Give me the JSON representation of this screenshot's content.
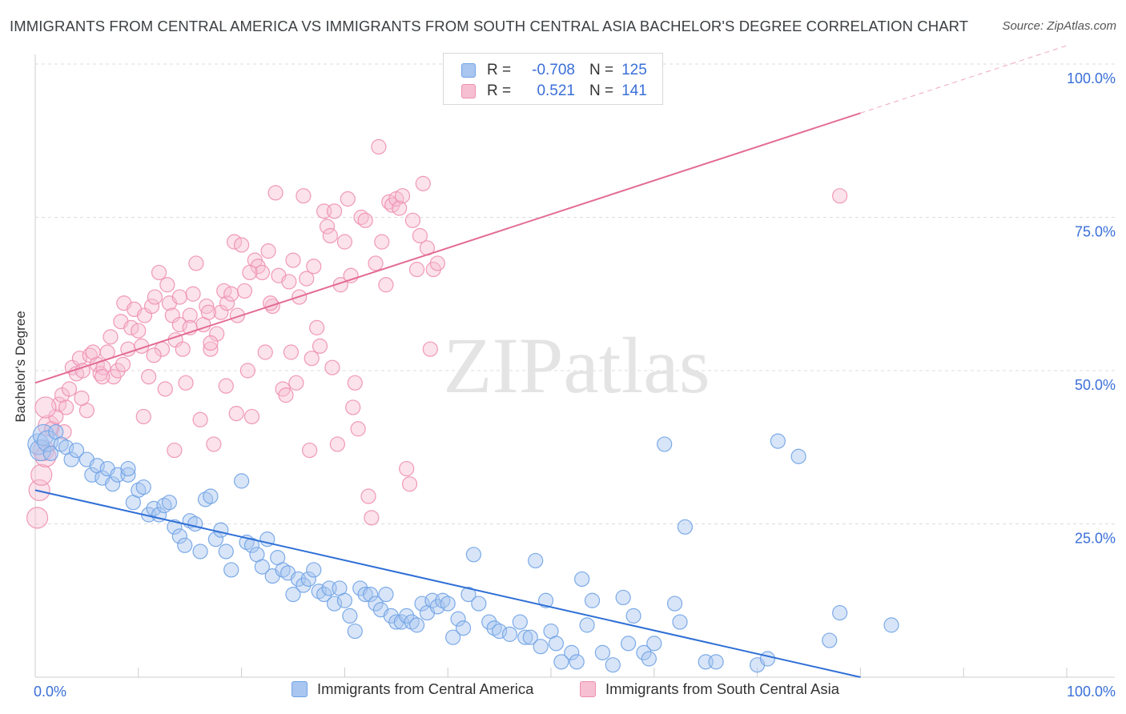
{
  "chart_data": {
    "type": "scatter",
    "title": "IMMIGRANTS FROM CENTRAL AMERICA VS IMMIGRANTS FROM SOUTH CENTRAL ASIA BACHELOR'S DEGREE CORRELATION CHART",
    "source": "Source: ZipAtlas.com",
    "watermark": "ZIPatlas",
    "xlabel": "",
    "ylabel": "Bachelor's Degree",
    "xlim": [
      0,
      100
    ],
    "ylim": [
      0,
      100
    ],
    "x_tick_labels": [
      "0.0%",
      "100.0%"
    ],
    "y_ticks": [
      25,
      50,
      75,
      100
    ],
    "y_tick_labels": [
      "25.0%",
      "50.0%",
      "75.0%",
      "100.0%"
    ],
    "grid": true,
    "legend_stats": [
      {
        "r_label": "R =",
        "r_value": "-0.708",
        "n_label": "N =",
        "n_value": "125"
      },
      {
        "r_label": "R =",
        "r_value": "0.521",
        "n_label": "N =",
        "n_value": "141"
      }
    ],
    "series": [
      {
        "name": "Immigrants from Central America",
        "color": "#6fa2e6",
        "fill": "#a9c6f0",
        "line_color": "#2f6fd6",
        "trend": {
          "x0": 0,
          "y0": 30.5,
          "x1": 80,
          "y1": 0
        },
        "points": [
          [
            0.3,
            38
          ],
          [
            0.5,
            37
          ],
          [
            0.8,
            39.5
          ],
          [
            1.2,
            38.5
          ],
          [
            1.5,
            36.5
          ],
          [
            2,
            40
          ],
          [
            2.5,
            38
          ],
          [
            3,
            37.5
          ],
          [
            3.5,
            35.5
          ],
          [
            4,
            37
          ],
          [
            5,
            35.5
          ],
          [
            5.5,
            33
          ],
          [
            6,
            34.5
          ],
          [
            6.5,
            32.5
          ],
          [
            7,
            34
          ],
          [
            7.5,
            31.5
          ],
          [
            8,
            33
          ],
          [
            9,
            33
          ],
          [
            9,
            34
          ],
          [
            9.5,
            28.5
          ],
          [
            10,
            30.5
          ],
          [
            10.5,
            31
          ],
          [
            11,
            26.5
          ],
          [
            11.5,
            27.5
          ],
          [
            12,
            26.5
          ],
          [
            12.5,
            28
          ],
          [
            13,
            28.5
          ],
          [
            13.5,
            24.5
          ],
          [
            14,
            23
          ],
          [
            14.5,
            21.5
          ],
          [
            15,
            25.5
          ],
          [
            15.5,
            25
          ],
          [
            16,
            20.5
          ],
          [
            16.5,
            29
          ],
          [
            17,
            29.5
          ],
          [
            17.5,
            22.5
          ],
          [
            18,
            24
          ],
          [
            18.5,
            20.5
          ],
          [
            19,
            17.5
          ],
          [
            20,
            32
          ],
          [
            20.5,
            22
          ],
          [
            21,
            21.5
          ],
          [
            21.5,
            20
          ],
          [
            22,
            18
          ],
          [
            22.5,
            22.5
          ],
          [
            23,
            16.5
          ],
          [
            23.5,
            19.5
          ],
          [
            24,
            17.5
          ],
          [
            24.5,
            17
          ],
          [
            25,
            13.5
          ],
          [
            25.5,
            16
          ],
          [
            26,
            15
          ],
          [
            26.5,
            16
          ],
          [
            27,
            17.5
          ],
          [
            27.5,
            14
          ],
          [
            28,
            13.5
          ],
          [
            28.5,
            14.5
          ],
          [
            29,
            12
          ],
          [
            29.5,
            14.5
          ],
          [
            30,
            12.5
          ],
          [
            30.5,
            10
          ],
          [
            31,
            7.5
          ],
          [
            31.5,
            14.5
          ],
          [
            32,
            13.5
          ],
          [
            32.5,
            13.5
          ],
          [
            33,
            12
          ],
          [
            33.5,
            11
          ],
          [
            34,
            13.5
          ],
          [
            34.5,
            10
          ],
          [
            35,
            9
          ],
          [
            35.5,
            9
          ],
          [
            36,
            10
          ],
          [
            36.5,
            9
          ],
          [
            37,
            8.5
          ],
          [
            37.5,
            12
          ],
          [
            38,
            10.5
          ],
          [
            38.5,
            12.5
          ],
          [
            39,
            11.5
          ],
          [
            39.5,
            12.5
          ],
          [
            40,
            12
          ],
          [
            40.5,
            6.5
          ],
          [
            41,
            9.5
          ],
          [
            41.5,
            8
          ],
          [
            42,
            13.5
          ],
          [
            42.5,
            20
          ],
          [
            43,
            12
          ],
          [
            44,
            9
          ],
          [
            44.5,
            8
          ],
          [
            45,
            7.5
          ],
          [
            46,
            7
          ],
          [
            47,
            9
          ],
          [
            47.5,
            6.5
          ],
          [
            48,
            6.5
          ],
          [
            48.5,
            19
          ],
          [
            49,
            5
          ],
          [
            49.5,
            12.5
          ],
          [
            50,
            7.5
          ],
          [
            50.5,
            5.5
          ],
          [
            51,
            2.5
          ],
          [
            52,
            4
          ],
          [
            52.5,
            2.5
          ],
          [
            53,
            16
          ],
          [
            53.5,
            8.5
          ],
          [
            54,
            12.5
          ],
          [
            55,
            4
          ],
          [
            56,
            2
          ],
          [
            57,
            13
          ],
          [
            57.5,
            5.5
          ],
          [
            58,
            10
          ],
          [
            59,
            4
          ],
          [
            59.5,
            3
          ],
          [
            60,
            5.5
          ],
          [
            61,
            38
          ],
          [
            62,
            12
          ],
          [
            62.5,
            9
          ],
          [
            63,
            24.5
          ],
          [
            65,
            2.5
          ],
          [
            66,
            2.5
          ],
          [
            72,
            38.5
          ],
          [
            74,
            36
          ],
          [
            77,
            6
          ],
          [
            78,
            10.5
          ],
          [
            83,
            8.5
          ],
          [
            70,
            2
          ],
          [
            71,
            3
          ]
        ]
      },
      {
        "name": "Immigrants from South Central Asia",
        "color": "#ee8fb0",
        "fill": "#f6bfd2",
        "line_color": "#e36c94",
        "trend": {
          "x0": 0,
          "y0": 48,
          "x1": 80,
          "y1": 92
        },
        "trend_dashed": {
          "x0": 80,
          "y0": 92,
          "x1": 100,
          "y1": 103
        },
        "points": [
          [
            0.2,
            26
          ],
          [
            0.4,
            30.5
          ],
          [
            0.6,
            33
          ],
          [
            0.8,
            37
          ],
          [
            1,
            36
          ],
          [
            1.3,
            41
          ],
          [
            1.6,
            40.5
          ],
          [
            2,
            42.5
          ],
          [
            2.3,
            44.5
          ],
          [
            2.6,
            46
          ],
          [
            3,
            44
          ],
          [
            3.3,
            47
          ],
          [
            3.6,
            50.5
          ],
          [
            4,
            49.5
          ],
          [
            4.3,
            52
          ],
          [
            4.6,
            50
          ],
          [
            5,
            43.5
          ],
          [
            5.3,
            52.5
          ],
          [
            5.6,
            53
          ],
          [
            6,
            51
          ],
          [
            6.3,
            49.5
          ],
          [
            6.6,
            50.5
          ],
          [
            7,
            53
          ],
          [
            7.3,
            55.5
          ],
          [
            7.6,
            49
          ],
          [
            8,
            50
          ],
          [
            8.3,
            58
          ],
          [
            8.6,
            61
          ],
          [
            9,
            53.5
          ],
          [
            9.3,
            57
          ],
          [
            9.6,
            60
          ],
          [
            10,
            56.5
          ],
          [
            10.3,
            54
          ],
          [
            10.6,
            59
          ],
          [
            11,
            49
          ],
          [
            11.3,
            60.5
          ],
          [
            11.6,
            62
          ],
          [
            12,
            66
          ],
          [
            12.3,
            53.5
          ],
          [
            12.6,
            47
          ],
          [
            13,
            61
          ],
          [
            13.3,
            59
          ],
          [
            13.6,
            55
          ],
          [
            14,
            57.5
          ],
          [
            14.3,
            53.5
          ],
          [
            14.6,
            48
          ],
          [
            15,
            59
          ],
          [
            15.3,
            62.5
          ],
          [
            15.6,
            67.5
          ],
          [
            16,
            42
          ],
          [
            16.3,
            57.5
          ],
          [
            16.6,
            60.5
          ],
          [
            17,
            53.5
          ],
          [
            17.3,
            38
          ],
          [
            17.6,
            56
          ],
          [
            18,
            59.5
          ],
          [
            18.3,
            63
          ],
          [
            18.6,
            61
          ],
          [
            19,
            62.5
          ],
          [
            19.3,
            71
          ],
          [
            19.6,
            59
          ],
          [
            20,
            70.5
          ],
          [
            20.3,
            63
          ],
          [
            20.6,
            50
          ],
          [
            21,
            42.5
          ],
          [
            21.3,
            68
          ],
          [
            21.6,
            67
          ],
          [
            22,
            66
          ],
          [
            22.3,
            53
          ],
          [
            22.6,
            69.5
          ],
          [
            23,
            60.5
          ],
          [
            23.3,
            79
          ],
          [
            23.6,
            65.5
          ],
          [
            24,
            47
          ],
          [
            24.3,
            46
          ],
          [
            24.6,
            64.5
          ],
          [
            25,
            68
          ],
          [
            25.3,
            48
          ],
          [
            25.6,
            62
          ],
          [
            26,
            78.5
          ],
          [
            26.3,
            65
          ],
          [
            26.6,
            37
          ],
          [
            27,
            67
          ],
          [
            27.3,
            57
          ],
          [
            27.6,
            54
          ],
          [
            28,
            76
          ],
          [
            28.3,
            73.5
          ],
          [
            28.6,
            72
          ],
          [
            29,
            76
          ],
          [
            29.3,
            38
          ],
          [
            29.6,
            64
          ],
          [
            30,
            71
          ],
          [
            30.3,
            78
          ],
          [
            30.6,
            65.5
          ],
          [
            31,
            48
          ],
          [
            31.3,
            40.5
          ],
          [
            31.6,
            75
          ],
          [
            32,
            74.5
          ],
          [
            32.3,
            29.5
          ],
          [
            32.6,
            26
          ],
          [
            33,
            67.5
          ],
          [
            33.3,
            86.5
          ],
          [
            33.6,
            71
          ],
          [
            34,
            64
          ],
          [
            34.3,
            77.5
          ],
          [
            34.6,
            77
          ],
          [
            35,
            78
          ],
          [
            35.3,
            76.5
          ],
          [
            35.6,
            78.5
          ],
          [
            36,
            34
          ],
          [
            36.3,
            31.5
          ],
          [
            36.6,
            74.5
          ],
          [
            37,
            66.5
          ],
          [
            37.3,
            72
          ],
          [
            37.6,
            80.5
          ],
          [
            38,
            70
          ],
          [
            38.3,
            53.5
          ],
          [
            38.6,
            66.5
          ],
          [
            39,
            67.5
          ],
          [
            78,
            78.5
          ],
          [
            10.5,
            42.5
          ],
          [
            13.5,
            37
          ],
          [
            6.5,
            49
          ],
          [
            8.5,
            51
          ],
          [
            11.5,
            52.5
          ],
          [
            14,
            62
          ],
          [
            15,
            57
          ],
          [
            17,
            54.5
          ],
          [
            18.5,
            47.5
          ],
          [
            19.5,
            43
          ],
          [
            12.8,
            64
          ],
          [
            16.8,
            59.5
          ],
          [
            20.8,
            66
          ],
          [
            22.8,
            61
          ],
          [
            24.8,
            53
          ],
          [
            26.8,
            52
          ],
          [
            28.8,
            50.5
          ],
          [
            30.8,
            44
          ],
          [
            2.8,
            40
          ],
          [
            4.5,
            45.5
          ],
          [
            1,
            44
          ]
        ]
      }
    ]
  }
}
